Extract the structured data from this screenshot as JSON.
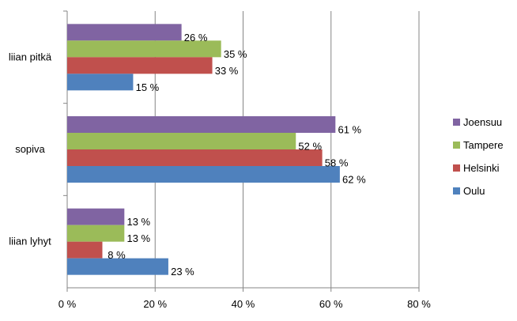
{
  "chart_data": {
    "type": "bar",
    "orientation": "horizontal",
    "title": "",
    "xlabel": "",
    "ylabel": "",
    "categories": [
      "liian pitkä",
      "sopiva",
      "liian lyhyt"
    ],
    "xlim": [
      0,
      80
    ],
    "x_ticks": [
      0,
      20,
      40,
      60,
      80
    ],
    "x_tick_labels": [
      "0 %",
      "20 %",
      "40 %",
      "60 %",
      "80 %"
    ],
    "value_suffix": " %",
    "grid": "vertical major gridlines",
    "legend_position": "right",
    "series": [
      {
        "name": "Joensuu",
        "color": "#8064A2",
        "values": [
          26,
          61,
          13
        ]
      },
      {
        "name": "Tampere",
        "color": "#9BBB59",
        "values": [
          35,
          52,
          13
        ]
      },
      {
        "name": "Helsinki",
        "color": "#C0504D",
        "values": [
          33,
          58,
          8
        ]
      },
      {
        "name": "Oulu",
        "color": "#4F81BD",
        "values": [
          15,
          62,
          23
        ]
      }
    ]
  }
}
